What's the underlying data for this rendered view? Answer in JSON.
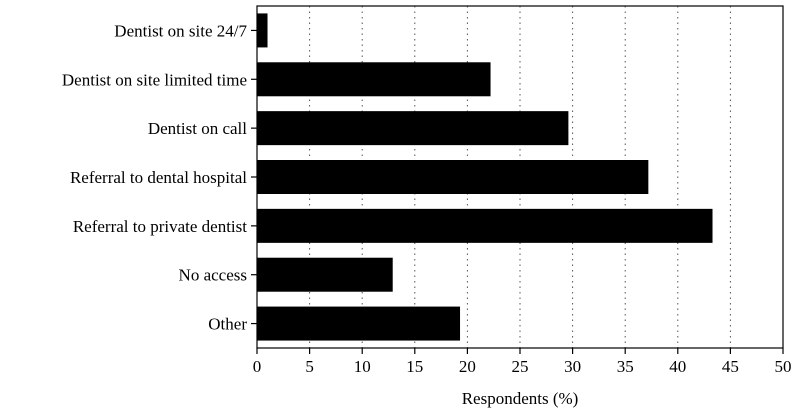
{
  "chart_data": {
    "type": "bar",
    "orientation": "horizontal",
    "categories": [
      "Dentist on site 24/7",
      "Dentist on site limited time",
      "Dentist on call",
      "Referral to dental hospital",
      "Referral to private dentist",
      "No access",
      "Other"
    ],
    "values": [
      1.0,
      22.2,
      29.6,
      37.2,
      43.3,
      12.9,
      19.3
    ],
    "title": "",
    "xlabel": "Respondents (%)",
    "ylabel": "",
    "xlim": [
      0,
      50
    ],
    "xticks": [
      "0",
      "5",
      "10",
      "15",
      "20",
      "25",
      "30",
      "35",
      "40",
      "45",
      "50"
    ],
    "grid": "vertical dotted",
    "legend": "none",
    "bar_color": "#000000"
  }
}
